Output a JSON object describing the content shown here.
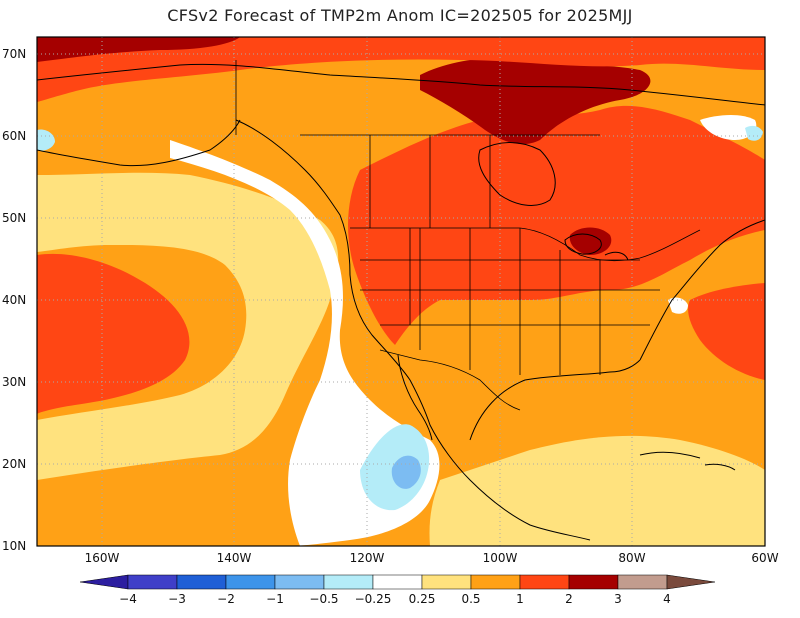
{
  "title": "CFSv2 Forecast of TMP2m Anom IC=202505 for 2025MJJ",
  "lat_labels": [
    "70N",
    "60N",
    "50N",
    "40N",
    "30N",
    "20N",
    "10N"
  ],
  "lon_labels": [
    "160W",
    "140W",
    "120W",
    "100W",
    "80W",
    "60W"
  ],
  "colorbar": {
    "labels": [
      "−4",
      "−3",
      "−2",
      "−1",
      "−0.5",
      "−0.25",
      "0.25",
      "0.5",
      "1",
      "2",
      "3",
      "4"
    ],
    "colors": [
      "#2c1ea0",
      "#3f3fc8",
      "#1f5fd6",
      "#3d94ea",
      "#7cbcf2",
      "#b4ecf8",
      "#ffffff",
      "#ffe27e",
      "#ffa116",
      "#ff4614",
      "#a50000",
      "#c29c8e",
      "#7a4a3c"
    ]
  }
}
